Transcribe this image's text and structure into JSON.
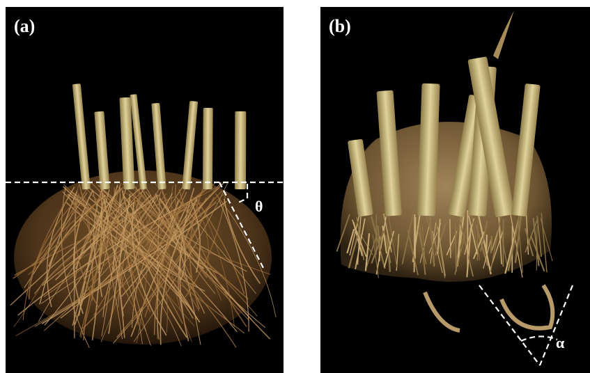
{
  "panels": [
    {
      "label": "(a)",
      "angle": "θ"
    },
    {
      "label": "(b)",
      "angle": "α"
    }
  ]
}
